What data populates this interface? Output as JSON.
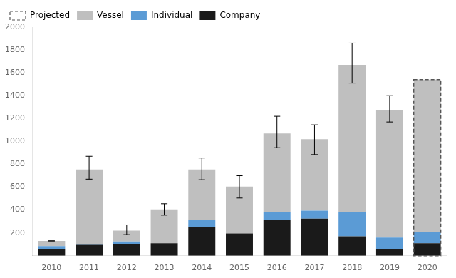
{
  "chart_data": {
    "type": "bar",
    "stacked": true,
    "categories": [
      "2010",
      "2011",
      "2012",
      "2013",
      "2014",
      "2015",
      "2016",
      "2017",
      "2018",
      "2019",
      "2020"
    ],
    "series": [
      {
        "name": "Company",
        "color": "#1a1a1a",
        "values": [
          55,
          95,
          100,
          110,
          250,
          195,
          310,
          325,
          170,
          60,
          110
        ]
      },
      {
        "name": "Individual",
        "color": "#5b9bd5",
        "values": [
          30,
          5,
          25,
          0,
          60,
          0,
          70,
          70,
          210,
          100,
          100
        ]
      },
      {
        "name": "Vessel",
        "color": "#bfbfbf",
        "values": [
          45,
          655,
          95,
          295,
          445,
          410,
          690,
          625,
          1290,
          1115,
          1330
        ]
      }
    ],
    "error_upper": [
      130,
      870,
      270,
      455,
      855,
      700,
      1220,
      1145,
      1860,
      1400,
      null
    ],
    "error_lower": [
      130,
      670,
      185,
      355,
      665,
      505,
      945,
      885,
      1510,
      1170,
      null
    ],
    "projected": {
      "name": "Projected",
      "category": "2020",
      "color": "#555555"
    },
    "ylim": [
      0,
      2000
    ],
    "yticks": [
      200,
      400,
      600,
      800,
      1000,
      1200,
      1400,
      1600,
      1800,
      2000
    ],
    "grid": false,
    "legend": "upper left"
  }
}
